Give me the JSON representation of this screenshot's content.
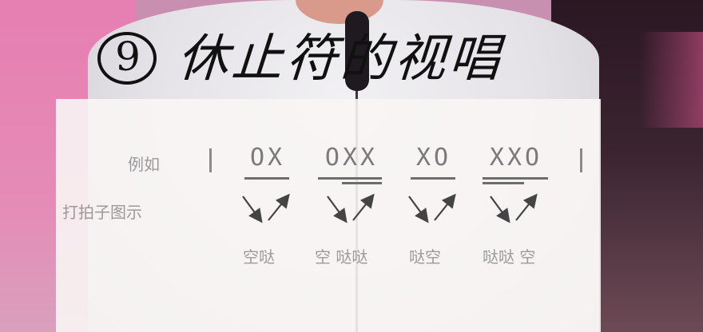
{
  "title": {
    "number": "9",
    "text": "休止符的视唱"
  },
  "example": {
    "label": "例如",
    "clap_label": "打拍子图示"
  },
  "patterns": [
    {
      "text": "OX",
      "sound": "空哒"
    },
    {
      "text": "OXX",
      "sound": "空 哒哒"
    },
    {
      "text": "XO",
      "sound": "哒空"
    },
    {
      "text": "XXO",
      "sound": "哒哒 空"
    }
  ],
  "colors": {
    "overlay": "#f8f5f4",
    "label_text": "#9a9a9a",
    "pattern_text": "#7a7a7a",
    "handwriting": "#111111",
    "pink_background": "#e77fb2"
  },
  "icons": [
    "down-right-arrow-icon",
    "up-right-arrow-icon",
    "underline-bar"
  ]
}
